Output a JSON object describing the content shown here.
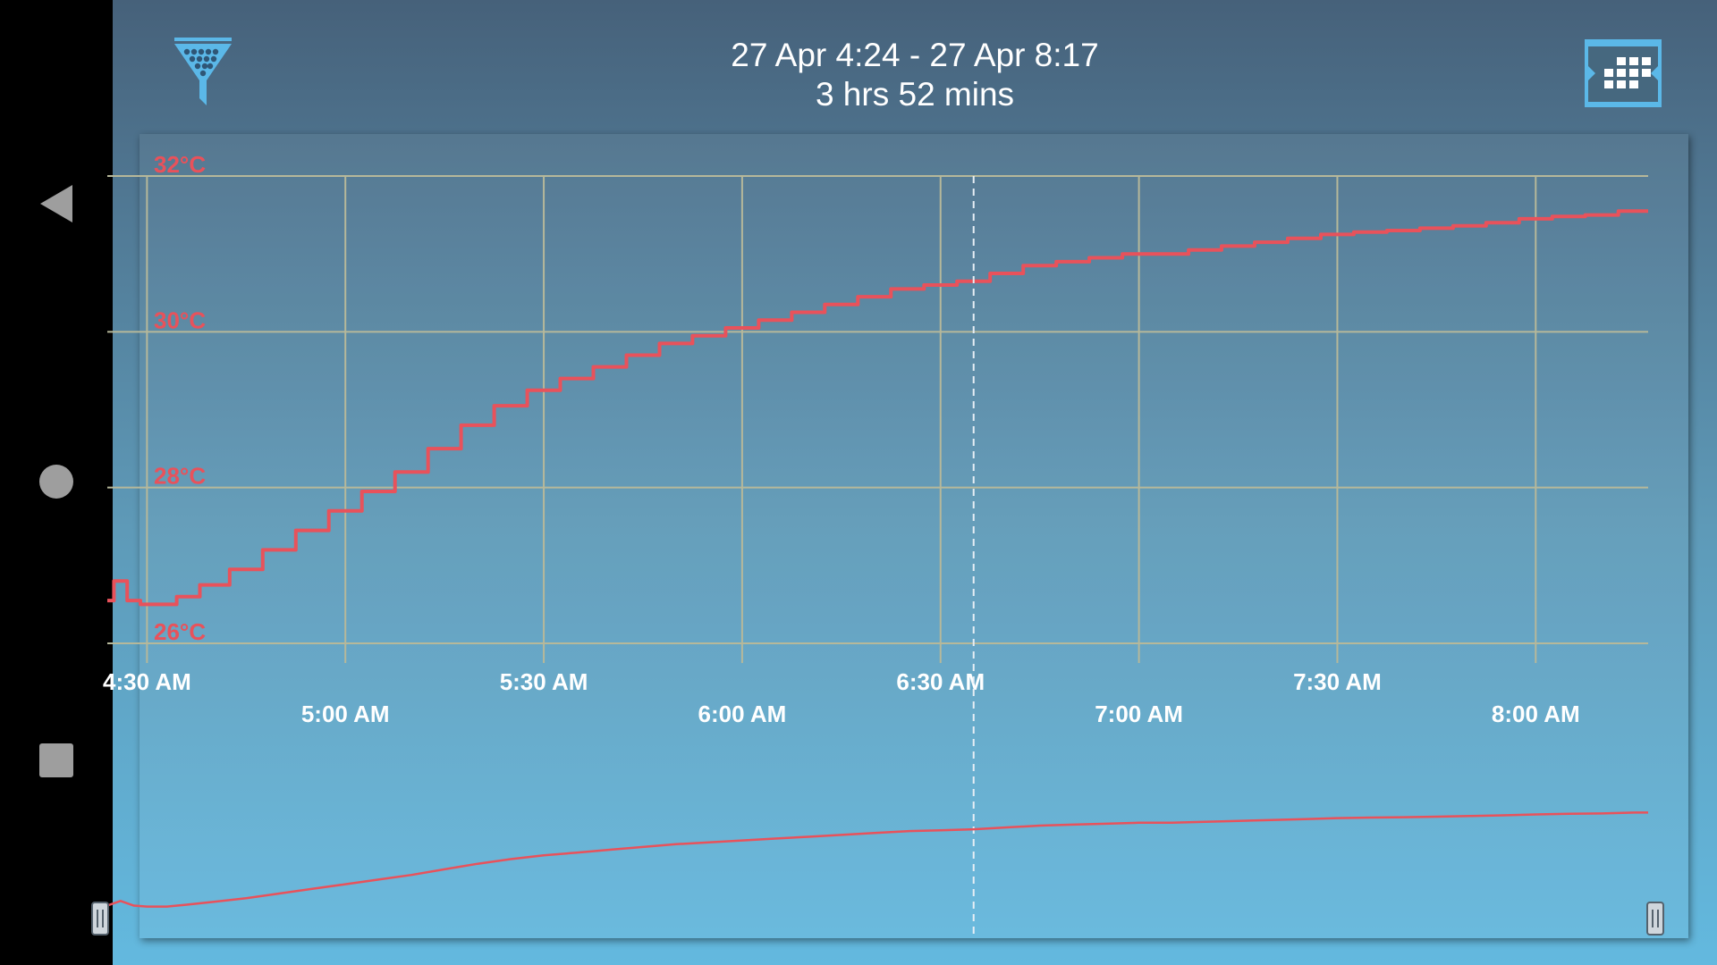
{
  "system_nav": {
    "back_icon": "triangle-back-icon",
    "home_icon": "circle-home-icon",
    "recents_icon": "square-recents-icon"
  },
  "header": {
    "date_range": "27 Apr 4:24 - 27 Apr 8:17",
    "duration": "3 hrs 52 mins",
    "filter_icon": "funnel-filter-icon",
    "calendar_icon": "calendar-icon"
  },
  "colors": {
    "series": "#e8525b",
    "grid": "#b6b89a",
    "axis_label_y": "#e8525b",
    "axis_label_x": "#ffffff",
    "accent": "#5bb8e8"
  },
  "chart_data": {
    "type": "line",
    "y_unit": "°C",
    "ylim": [
      26,
      32
    ],
    "yticks": [
      "32°C",
      "30°C",
      "28°C",
      "26°C"
    ],
    "ytick_values": [
      32,
      30,
      28,
      26
    ],
    "xlim": [
      "04:24",
      "08:17"
    ],
    "xticks": [
      "4:30 AM",
      "5:00 AM",
      "5:30 AM",
      "6:00 AM",
      "6:30 AM",
      "7:00 AM",
      "7:30 AM",
      "8:00 AM"
    ],
    "xtick_times": [
      "04:30",
      "05:00",
      "05:30",
      "06:00",
      "06:30",
      "07:00",
      "07:30",
      "08:00"
    ],
    "grid": true,
    "cursor_time": "06:35",
    "range_selector": {
      "start": "04:24",
      "end": "08:17"
    },
    "series": [
      {
        "x": [
          "04:24",
          "04:26",
          "04:28",
          "04:30",
          "04:33",
          "04:36",
          "04:40",
          "04:45",
          "04:50",
          "04:55",
          "05:00",
          "05:05",
          "05:10",
          "05:15",
          "05:20",
          "05:25",
          "05:30",
          "05:35",
          "05:40",
          "05:45",
          "05:50",
          "05:55",
          "06:00",
          "06:05",
          "06:10",
          "06:15",
          "06:20",
          "06:25",
          "06:30",
          "06:35",
          "06:40",
          "06:45",
          "06:50",
          "06:55",
          "07:00",
          "07:05",
          "07:10",
          "07:15",
          "07:20",
          "07:25",
          "07:30",
          "07:35",
          "07:40",
          "07:45",
          "07:50",
          "07:55",
          "08:00",
          "08:05",
          "08:10",
          "08:15",
          "08:17"
        ],
        "values": [
          26.55,
          26.8,
          26.55,
          26.5,
          26.5,
          26.6,
          26.75,
          26.95,
          27.2,
          27.45,
          27.7,
          27.95,
          28.2,
          28.5,
          28.8,
          29.05,
          29.25,
          29.4,
          29.55,
          29.7,
          29.85,
          29.95,
          30.05,
          30.15,
          30.25,
          30.35,
          30.45,
          30.55,
          30.6,
          30.65,
          30.75,
          30.85,
          30.9,
          30.95,
          31.0,
          31.0,
          31.05,
          31.1,
          31.15,
          31.2,
          31.25,
          31.28,
          31.3,
          31.33,
          31.36,
          31.4,
          31.45,
          31.48,
          31.5,
          31.55,
          31.55
        ]
      }
    ]
  }
}
